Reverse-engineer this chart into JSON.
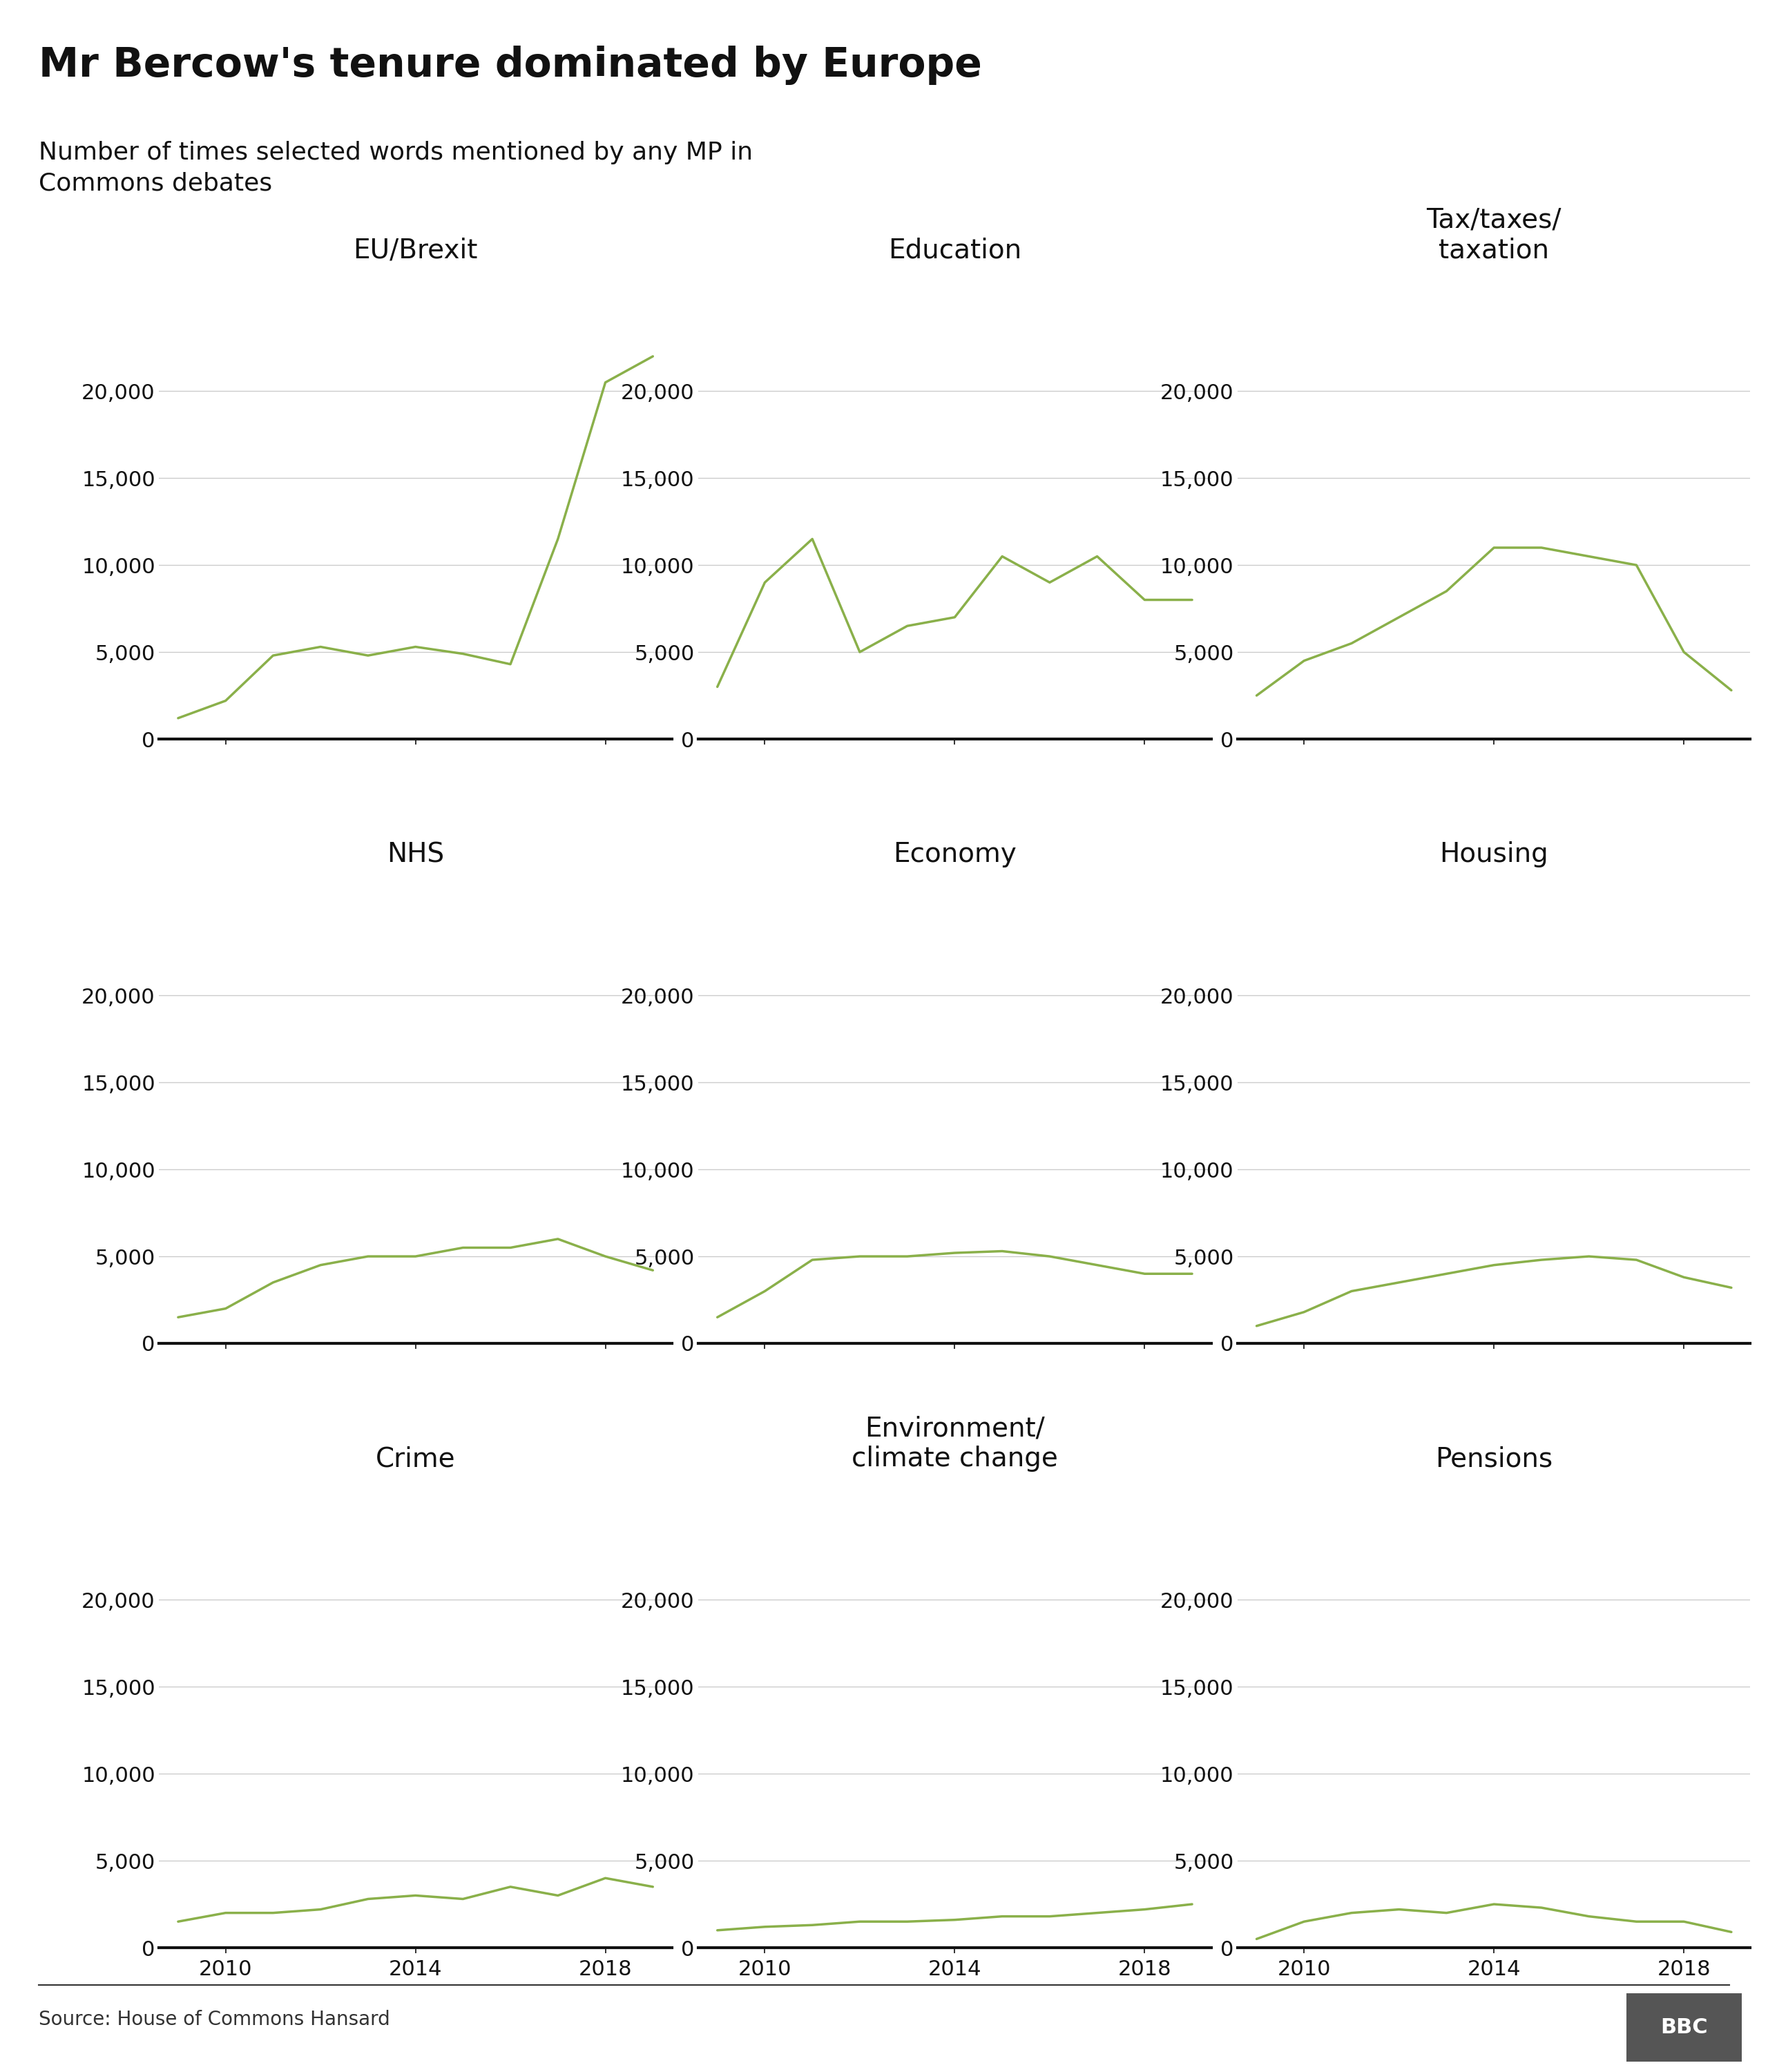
{
  "title": "Mr Bercow's tenure dominated by Europe",
  "subtitle": "Number of times selected words mentioned by any MP in\nCommons debates",
  "source": "Source: House of Commons Hansard",
  "line_color": "#8ab04a",
  "background_color": "#ffffff",
  "grid_color": "#cccccc",
  "years": [
    2009,
    2010,
    2011,
    2012,
    2013,
    2014,
    2015,
    2016,
    2017,
    2018,
    2019
  ],
  "series": [
    {
      "label": "EU/Brexit",
      "values": [
        1200,
        2200,
        4800,
        5300,
        4800,
        5300,
        4900,
        4300,
        11500,
        20500,
        22000
      ]
    },
    {
      "label": "Education",
      "values": [
        3000,
        9000,
        11500,
        5000,
        6500,
        7000,
        10500,
        9000,
        10500,
        8000,
        8000
      ]
    },
    {
      "label": "Tax/taxes/\ntaxation",
      "values": [
        2500,
        4500,
        5500,
        7000,
        8500,
        11000,
        11000,
        10500,
        10000,
        5000,
        2800
      ]
    },
    {
      "label": "NHS",
      "values": [
        1500,
        2000,
        3500,
        4500,
        5000,
        5000,
        5500,
        5500,
        6000,
        5000,
        4200
      ]
    },
    {
      "label": "Economy",
      "values": [
        1500,
        3000,
        4800,
        5000,
        5000,
        5200,
        5300,
        5000,
        4500,
        4000,
        4000
      ]
    },
    {
      "label": "Housing",
      "values": [
        1000,
        1800,
        3000,
        3500,
        4000,
        4500,
        4800,
        5000,
        4800,
        3800,
        3200
      ]
    },
    {
      "label": "Crime",
      "values": [
        1500,
        2000,
        2000,
        2200,
        2800,
        3000,
        2800,
        3500,
        3000,
        4000,
        3500
      ]
    },
    {
      "label": "Environment/\nclimate change",
      "values": [
        1000,
        1200,
        1300,
        1500,
        1500,
        1600,
        1800,
        1800,
        2000,
        2200,
        2500
      ]
    },
    {
      "label": "Pensions",
      "values": [
        500,
        1500,
        2000,
        2200,
        2000,
        2500,
        2300,
        1800,
        1500,
        1500,
        900
      ]
    }
  ],
  "ylim": [
    0,
    25000
  ],
  "yticks": [
    0,
    5000,
    10000,
    15000,
    20000
  ],
  "xticks": [
    2010,
    2014,
    2018
  ],
  "title_fontsize": 42,
  "subtitle_fontsize": 26,
  "label_fontsize": 28,
  "tick_fontsize": 22,
  "source_fontsize": 20,
  "line_width": 2.5
}
